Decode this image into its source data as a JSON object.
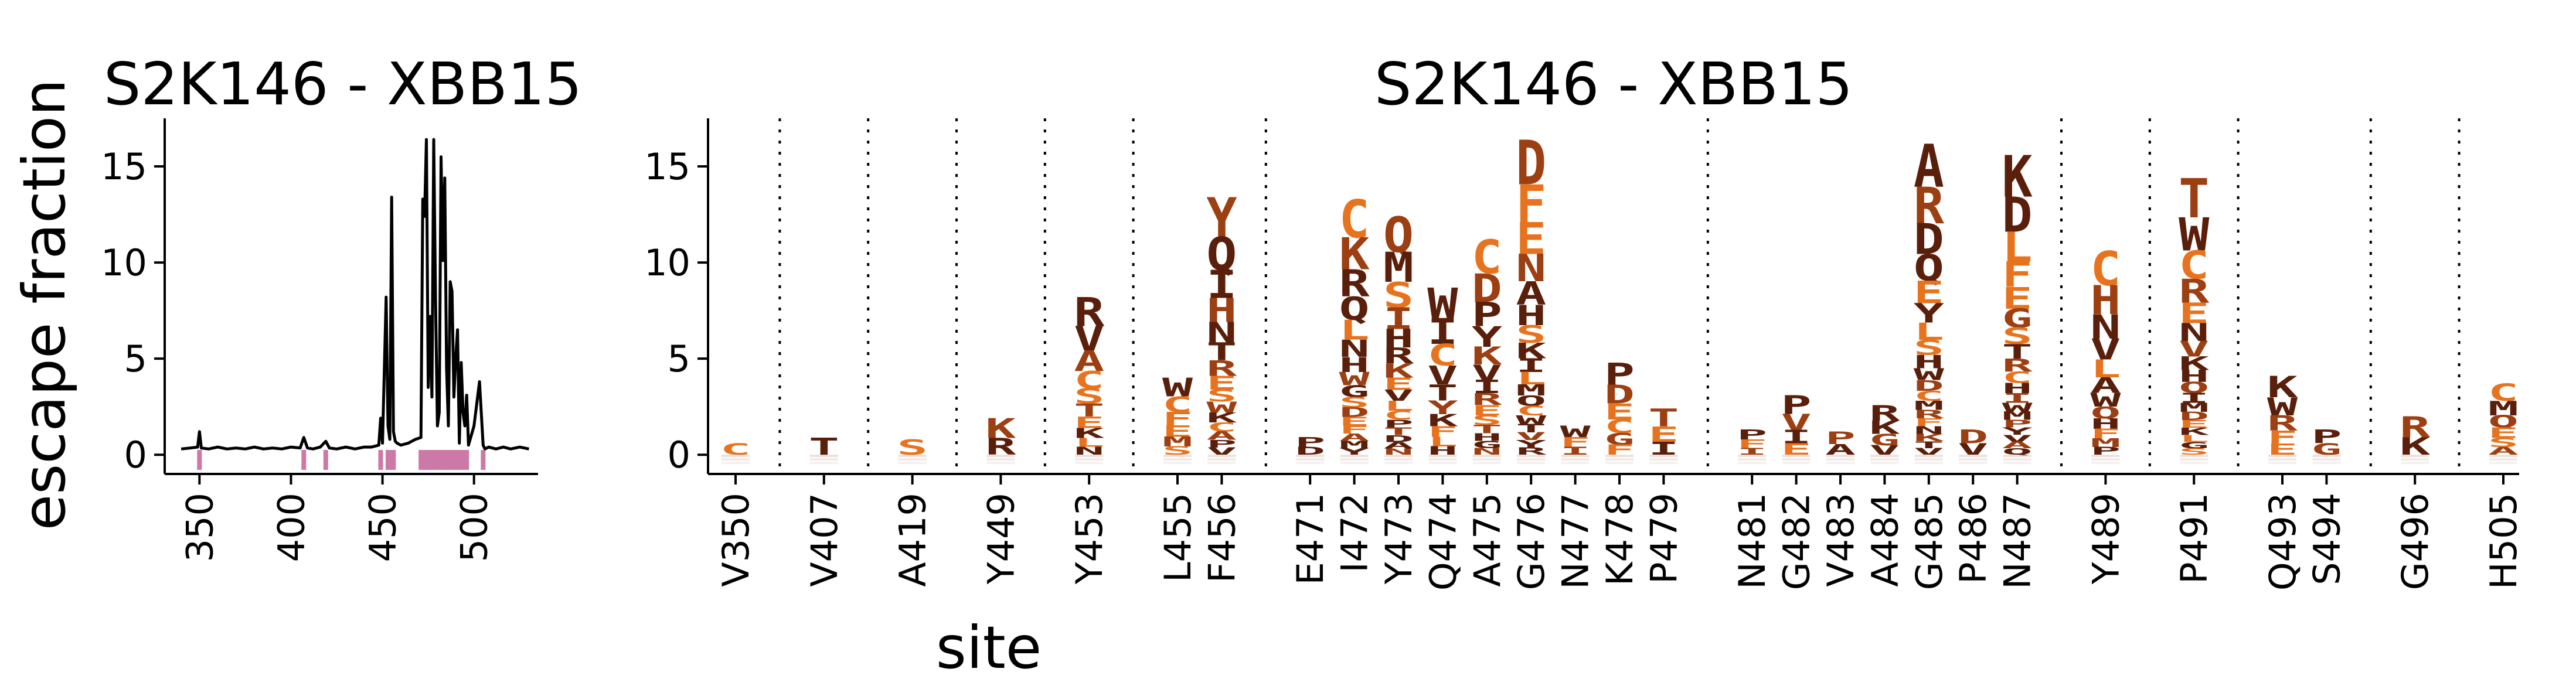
{
  "colors": {
    "line": "#000000",
    "highlight": "#cc79a7",
    "dark_brown": "#5a1f0b",
    "mid_brown": "#9c3f12",
    "orange": "#e8731e"
  },
  "chart_data": [
    {
      "type": "line",
      "title": "S2K146 - XBB15",
      "xlabel": "site",
      "ylabel": "escape fraction",
      "xlim": [
        331,
        535
      ],
      "ylim": [
        -1,
        17.5
      ],
      "yticks": [
        0,
        5,
        10,
        15
      ],
      "xticks": [
        350,
        400,
        450,
        500
      ],
      "grid": false,
      "baseline": 0.35,
      "x": [
        340,
        345,
        349,
        350,
        351,
        355,
        360,
        365,
        370,
        375,
        380,
        385,
        390,
        395,
        400,
        405,
        407,
        409,
        412,
        416,
        419,
        421,
        425,
        430,
        435,
        440,
        444,
        448,
        449,
        450,
        452,
        453,
        454,
        455,
        456,
        457,
        458,
        460,
        464,
        468,
        471,
        472,
        473,
        474,
        475,
        476,
        477,
        478,
        479,
        480,
        481,
        482,
        483,
        484,
        485,
        486,
        487,
        488,
        489,
        490,
        491,
        492,
        493,
        494,
        495,
        496,
        497,
        500,
        503,
        505,
        506,
        508,
        512,
        516,
        520,
        525,
        530
      ],
      "y": [
        0.3,
        0.35,
        0.4,
        1.2,
        0.35,
        0.3,
        0.4,
        0.3,
        0.35,
        0.3,
        0.4,
        0.3,
        0.35,
        0.3,
        0.4,
        0.35,
        0.9,
        0.35,
        0.3,
        0.4,
        0.7,
        0.35,
        0.3,
        0.4,
        0.3,
        0.4,
        0.4,
        0.5,
        1.9,
        0.6,
        8.2,
        1.5,
        0.8,
        13.4,
        1.2,
        0.7,
        0.6,
        0.5,
        0.6,
        0.8,
        0.9,
        13.3,
        12.4,
        16.4,
        3.5,
        7.2,
        3.0,
        16.4,
        8.0,
        1.5,
        2.2,
        15.5,
        10.1,
        14.4,
        4.5,
        1.5,
        9.0,
        8.5,
        3.0,
        5.0,
        6.5,
        0.6,
        4.8,
        2.2,
        1.5,
        3.1,
        0.5,
        1.5,
        3.8,
        0.5,
        0.3,
        0.4,
        0.3,
        0.4,
        0.3,
        0.4,
        0.3
      ],
      "highlight_sites": [
        350,
        407,
        419,
        449,
        453,
        455,
        456,
        471,
        472,
        473,
        474,
        475,
        476,
        477,
        478,
        479,
        481,
        482,
        483,
        484,
        485,
        486,
        487,
        489,
        491,
        493,
        494,
        496,
        505
      ]
    },
    {
      "type": "logo",
      "title": "S2K146 - XBB15",
      "xlabel": "site",
      "ylabel": "",
      "ylim": [
        -1,
        17.5
      ],
      "yticks": [
        0,
        5,
        10,
        15
      ],
      "grid": false,
      "groups": [
        [
          "V350"
        ],
        [
          "V407"
        ],
        [
          "A419"
        ],
        [
          "Y449"
        ],
        [
          "Y453"
        ],
        [
          "L455",
          "F456"
        ],
        [
          "E471",
          "I472",
          "Y473",
          "Q474",
          "A475",
          "G476",
          "N477",
          "K478",
          "P479"
        ],
        [
          "N481",
          "G482",
          "V483",
          "A484",
          "G485",
          "P486",
          "N487"
        ],
        [
          "Y489"
        ],
        [
          "P491"
        ],
        [
          "Q493",
          "S494"
        ],
        [
          "G496"
        ],
        [
          "H505"
        ]
      ],
      "sites": [
        {
          "label": "V350",
          "total": 0.6,
          "letters": [
            "C"
          ]
        },
        {
          "label": "V407",
          "total": 0.9,
          "letters": [
            "T"
          ]
        },
        {
          "label": "A419",
          "total": 0.8,
          "letters": [
            "S"
          ]
        },
        {
          "label": "Y449",
          "total": 1.9,
          "letters": [
            "K",
            "R"
          ]
        },
        {
          "label": "Y453",
          "total": 8.2,
          "letters": [
            "R",
            "V",
            "A",
            "C",
            "S",
            "T",
            "E",
            "K",
            "L",
            "N"
          ]
        },
        {
          "label": "L455",
          "total": 4.0,
          "letters": [
            "W",
            "C",
            "F",
            "E",
            "M",
            "S"
          ]
        },
        {
          "label": "F456",
          "total": 13.4,
          "letters": [
            "Y",
            "Q",
            "I",
            "H",
            "N",
            "T",
            "R",
            "E",
            "S",
            "W",
            "K",
            "C",
            "A",
            "P",
            "V"
          ]
        },
        {
          "label": "E471",
          "total": 0.9,
          "letters": [
            "P",
            "D"
          ]
        },
        {
          "label": "I472",
          "total": 13.3,
          "letters": [
            "C",
            "K",
            "R",
            "Q",
            "L",
            "N",
            "H",
            "W",
            "G",
            "S",
            "D",
            "E",
            "F",
            "A",
            "M",
            "Y"
          ]
        },
        {
          "label": "Y473",
          "total": 12.4,
          "letters": [
            "Q",
            "M",
            "S",
            "I",
            "H",
            "R",
            "K",
            "E",
            "V",
            "L",
            "C",
            "P",
            "T",
            "D",
            "A",
            "N"
          ]
        },
        {
          "label": "Q474",
          "total": 8.7,
          "letters": [
            "W",
            "I",
            "C",
            "V",
            "T",
            "Y",
            "K",
            "F",
            "L",
            "H"
          ]
        },
        {
          "label": "A475",
          "total": 11.2,
          "letters": [
            "C",
            "D",
            "P",
            "Y",
            "K",
            "V",
            "I",
            "R",
            "E",
            "S",
            "T",
            "H",
            "G",
            "N"
          ]
        },
        {
          "label": "G476",
          "total": 16.4,
          "letters": [
            "D",
            "F",
            "E",
            "N",
            "A",
            "H",
            "S",
            "K",
            "I",
            "L",
            "M",
            "Q",
            "C",
            "W",
            "T",
            "V",
            "Y",
            "R"
          ]
        },
        {
          "label": "N477",
          "total": 1.5,
          "letters": [
            "W",
            "F",
            "I"
          ]
        },
        {
          "label": "K478",
          "total": 4.8,
          "letters": [
            "P",
            "D",
            "E",
            "C",
            "G",
            "F"
          ]
        },
        {
          "label": "P479",
          "total": 2.4,
          "letters": [
            "T",
            "E",
            "I"
          ]
        },
        {
          "label": "N481",
          "total": 1.3,
          "letters": [
            "P",
            "F",
            "I"
          ]
        },
        {
          "label": "G482",
          "total": 3.1,
          "letters": [
            "P",
            "V",
            "I",
            "E"
          ]
        },
        {
          "label": "V483",
          "total": 1.2,
          "letters": [
            "P",
            "A"
          ]
        },
        {
          "label": "A484",
          "total": 2.6,
          "letters": [
            "R",
            "K",
            "G",
            "V"
          ]
        },
        {
          "label": "G485",
          "total": 16.2,
          "letters": [
            "A",
            "R",
            "D",
            "Q",
            "E",
            "Y",
            "L",
            "S",
            "H",
            "W",
            "D",
            "C",
            "M",
            "R",
            "F",
            "N",
            "K",
            "T",
            "V"
          ]
        },
        {
          "label": "P486",
          "total": 1.3,
          "letters": [
            "D",
            "V"
          ]
        },
        {
          "label": "N487",
          "total": 15.6,
          "letters": [
            "K",
            "D",
            "L",
            "F",
            "E",
            "G",
            "S",
            "T",
            "R",
            "C",
            "H",
            "I",
            "W",
            "M",
            "P",
            "Y",
            "V",
            "A",
            "Q"
          ]
        },
        {
          "label": "Y489",
          "total": 10.6,
          "letters": [
            "C",
            "H",
            "N",
            "V",
            "L",
            "A",
            "W",
            "Q",
            "H",
            "F",
            "M",
            "P"
          ]
        },
        {
          "label": "P491",
          "total": 14.4,
          "letters": [
            "T",
            "W",
            "C",
            "R",
            "E",
            "N",
            "V",
            "K",
            "H",
            "Q",
            "I",
            "M",
            "D",
            "E",
            "K",
            "L",
            "G",
            "S"
          ]
        },
        {
          "label": "Q493",
          "total": 4.1,
          "letters": [
            "K",
            "W",
            "R",
            "F",
            "E"
          ]
        },
        {
          "label": "S494",
          "total": 1.3,
          "letters": [
            "P",
            "G"
          ]
        },
        {
          "label": "G496",
          "total": 2.0,
          "letters": [
            "R",
            "K"
          ]
        },
        {
          "label": "H505",
          "total": 3.7,
          "letters": [
            "C",
            "M",
            "Q",
            "E",
            "S",
            "A"
          ]
        }
      ]
    }
  ]
}
